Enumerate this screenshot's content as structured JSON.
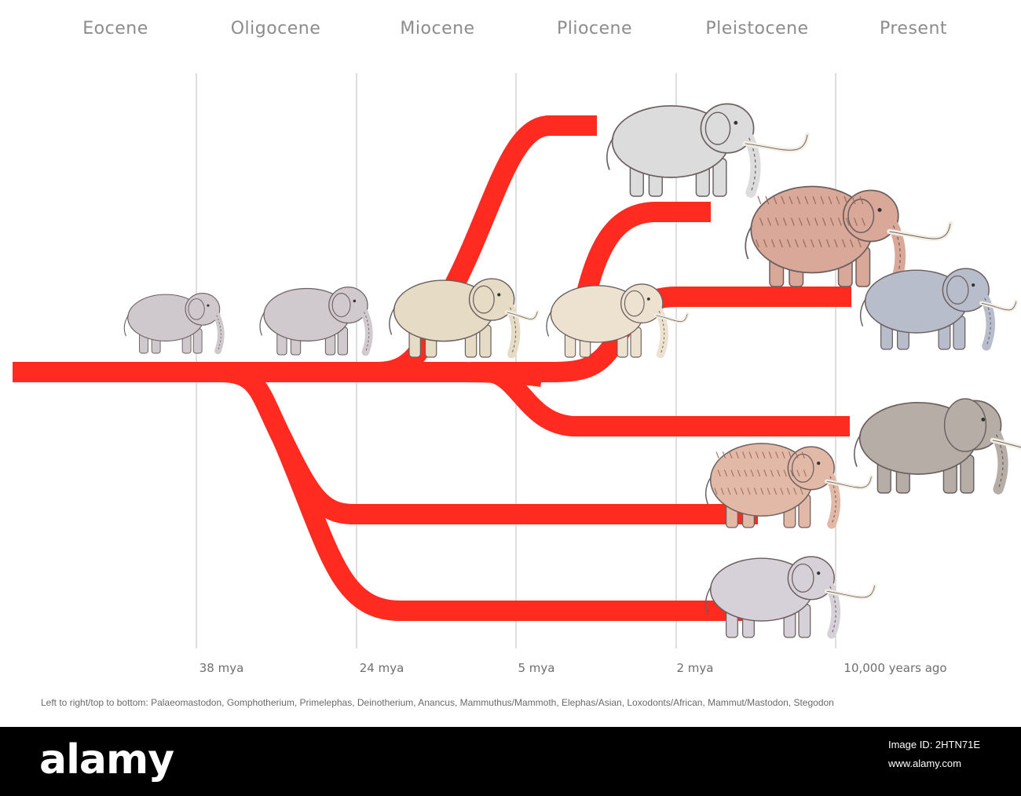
{
  "epochs": [
    "Eocene",
    "Oligocene",
    "Miocene",
    "Pliocene",
    "Pleistocene",
    "Present"
  ],
  "time_ticks": [
    "38 mya",
    "24 mya",
    "5 mya",
    "2 mya",
    "10,000 years ago"
  ],
  "caption": "Left to right/top to bottom: Palaeomastodon, Gomphotherium, Primelephas, Deinotherium, Anancus, Mammuthus/Mammoth, Elephas/Asian, Loxodonts/African, Mammut/Mastodon, Stegodon",
  "colors": {
    "lineage": "#ff2a20",
    "gridline": "#bdbdbd",
    "epoch_text": "#8c8c8c"
  },
  "animals": [
    {
      "name": "Palaeomastodon",
      "fill": "#cfc8cc"
    },
    {
      "name": "Gomphotherium",
      "fill": "#d0c9cd"
    },
    {
      "name": "Primelephas",
      "fill": "#e6dcc6"
    },
    {
      "name": "Deinotherium",
      "fill": "#dcdcdc"
    },
    {
      "name": "Anancus",
      "fill": "#ece2cf"
    },
    {
      "name": "Mammuthus/Mammoth",
      "fill": "#d9a898"
    },
    {
      "name": "Elephas/Asian",
      "fill": "#b8bdcc"
    },
    {
      "name": "Loxodonts/African",
      "fill": "#b6aea6"
    },
    {
      "name": "Mammut/Mastodon",
      "fill": "#e2b8a6"
    },
    {
      "name": "Stegodon",
      "fill": "#d6d0d8"
    }
  ],
  "watermark": {
    "logo": "alamy",
    "image_id": "Image ID: 2HTN71E",
    "site": "www.alamy.com"
  }
}
